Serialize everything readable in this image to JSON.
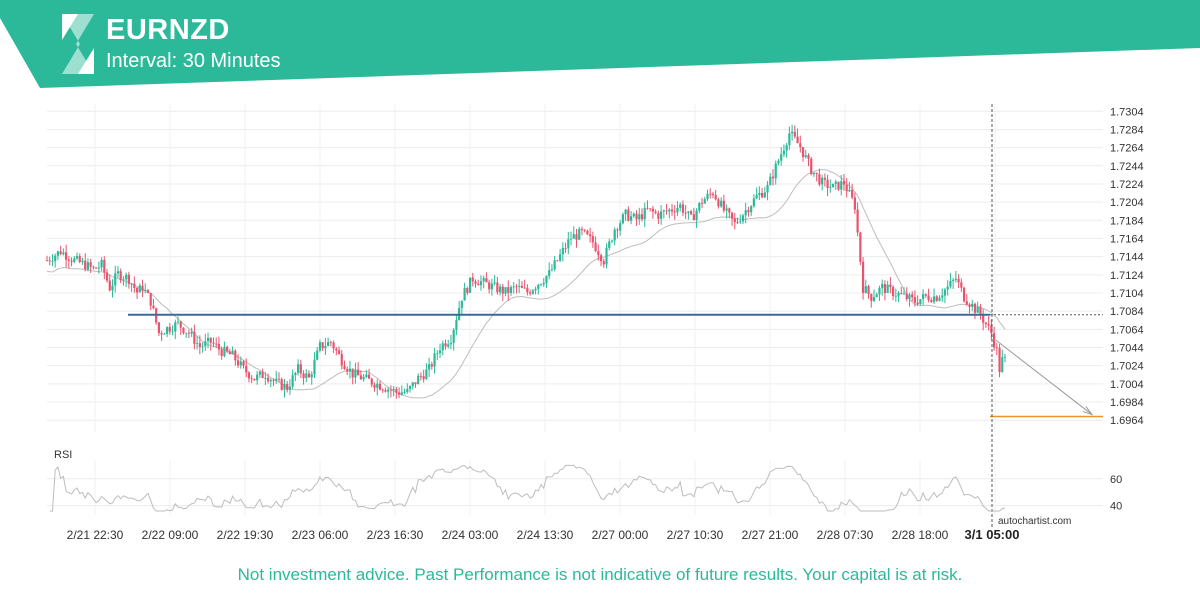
{
  "header": {
    "title": "EURNZD",
    "subtitle": "Interval: 30 Minutes",
    "bg_color": "#2bb99a"
  },
  "footer": {
    "disclaimer": "Not investment advice. Past Performance is not indicative of future results. Your capital is at risk.",
    "watermark": "autochartist.com"
  },
  "chart_data": {
    "type": "candlestick",
    "symbol": "EURNZD",
    "interval": "30 Minutes",
    "y_ticks": [
      1.7304,
      1.7284,
      1.7264,
      1.7244,
      1.7224,
      1.7204,
      1.7184,
      1.7164,
      1.7144,
      1.7124,
      1.7104,
      1.7084,
      1.7064,
      1.7044,
      1.7024,
      1.7004,
      1.6984,
      1.6964
    ],
    "ylim": [
      1.6951,
      1.7312
    ],
    "x_ticks": [
      "2/21 22:30",
      "2/22 09:00",
      "2/22 19:30",
      "2/23 06:00",
      "2/23 16:30",
      "2/24 03:00",
      "2/24 13:30",
      "2/27 00:00",
      "2/27 10:30",
      "2/27 21:00",
      "2/28 07:30",
      "2/28 18:00",
      "3/1 05:00"
    ],
    "highlight_x_tick": "3/1 05:00",
    "support_level": 1.708,
    "target_level": 1.6968,
    "price_waypoints": [
      [
        0,
        1.714
      ],
      [
        5,
        1.715
      ],
      [
        10,
        1.714
      ],
      [
        14,
        1.7135
      ],
      [
        17,
        1.713
      ],
      [
        20,
        1.7135
      ],
      [
        23,
        1.711
      ],
      [
        26,
        1.7125
      ],
      [
        30,
        1.712
      ],
      [
        33,
        1.7105
      ],
      [
        35,
        1.711
      ],
      [
        38,
        1.7095
      ],
      [
        41,
        1.706
      ],
      [
        44,
        1.7065
      ],
      [
        48,
        1.707
      ],
      [
        52,
        1.706
      ],
      [
        56,
        1.7045
      ],
      [
        60,
        1.705
      ],
      [
        64,
        1.704
      ],
      [
        68,
        1.7035
      ],
      [
        72,
        1.702
      ],
      [
        76,
        1.701
      ],
      [
        80,
        1.7015
      ],
      [
        84,
        1.7005
      ],
      [
        88,
        1.7
      ],
      [
        92,
        1.702
      ],
      [
        96,
        1.701
      ],
      [
        100,
        1.7045
      ],
      [
        104,
        1.705
      ],
      [
        108,
        1.703
      ],
      [
        112,
        1.7015
      ],
      [
        116,
        1.701
      ],
      [
        120,
        1.7005
      ],
      [
        124,
        1.7
      ],
      [
        128,
        1.6995
      ],
      [
        132,
        1.6995
      ],
      [
        136,
        1.701
      ],
      [
        140,
        1.702
      ],
      [
        144,
        1.7045
      ],
      [
        148,
        1.7055
      ],
      [
        152,
        1.71
      ],
      [
        156,
        1.712
      ],
      [
        160,
        1.7115
      ],
      [
        164,
        1.711
      ],
      [
        168,
        1.7105
      ],
      [
        172,
        1.711
      ],
      [
        176,
        1.7105
      ],
      [
        180,
        1.7115
      ],
      [
        184,
        1.7125
      ],
      [
        188,
        1.7145
      ],
      [
        192,
        1.7165
      ],
      [
        196,
        1.717
      ],
      [
        200,
        1.716
      ],
      [
        204,
        1.714
      ],
      [
        208,
        1.7175
      ],
      [
        212,
        1.719
      ],
      [
        216,
        1.7185
      ],
      [
        220,
        1.7195
      ],
      [
        224,
        1.719
      ],
      [
        228,
        1.7195
      ],
      [
        232,
        1.72
      ],
      [
        236,
        1.7185
      ],
      [
        240,
        1.7205
      ],
      [
        244,
        1.7215
      ],
      [
        248,
        1.7195
      ],
      [
        252,
        1.718
      ],
      [
        256,
        1.7195
      ],
      [
        260,
        1.721
      ],
      [
        264,
        1.722
      ],
      [
        268,
        1.725
      ],
      [
        272,
        1.728
      ],
      [
        276,
        1.7265
      ],
      [
        280,
        1.724
      ],
      [
        284,
        1.7225
      ],
      [
        288,
        1.722
      ],
      [
        292,
        1.7225
      ],
      [
        296,
        1.72
      ],
      [
        299,
        1.711
      ],
      [
        302,
        1.71
      ],
      [
        306,
        1.711
      ],
      [
        310,
        1.7105
      ],
      [
        314,
        1.71
      ],
      [
        318,
        1.7095
      ],
      [
        322,
        1.71
      ],
      [
        326,
        1.71
      ],
      [
        330,
        1.711
      ],
      [
        333,
        1.712
      ],
      [
        336,
        1.71
      ],
      [
        339,
        1.709
      ],
      [
        342,
        1.708
      ],
      [
        344,
        1.707
      ],
      [
        346,
        1.706
      ],
      [
        348,
        1.704
      ],
      [
        349,
        1.702
      ],
      [
        350,
        1.703
      ]
    ],
    "rsi": {
      "label": "RSI",
      "y_ticks": [
        60,
        40
      ],
      "ylim": [
        33,
        74
      ]
    }
  }
}
